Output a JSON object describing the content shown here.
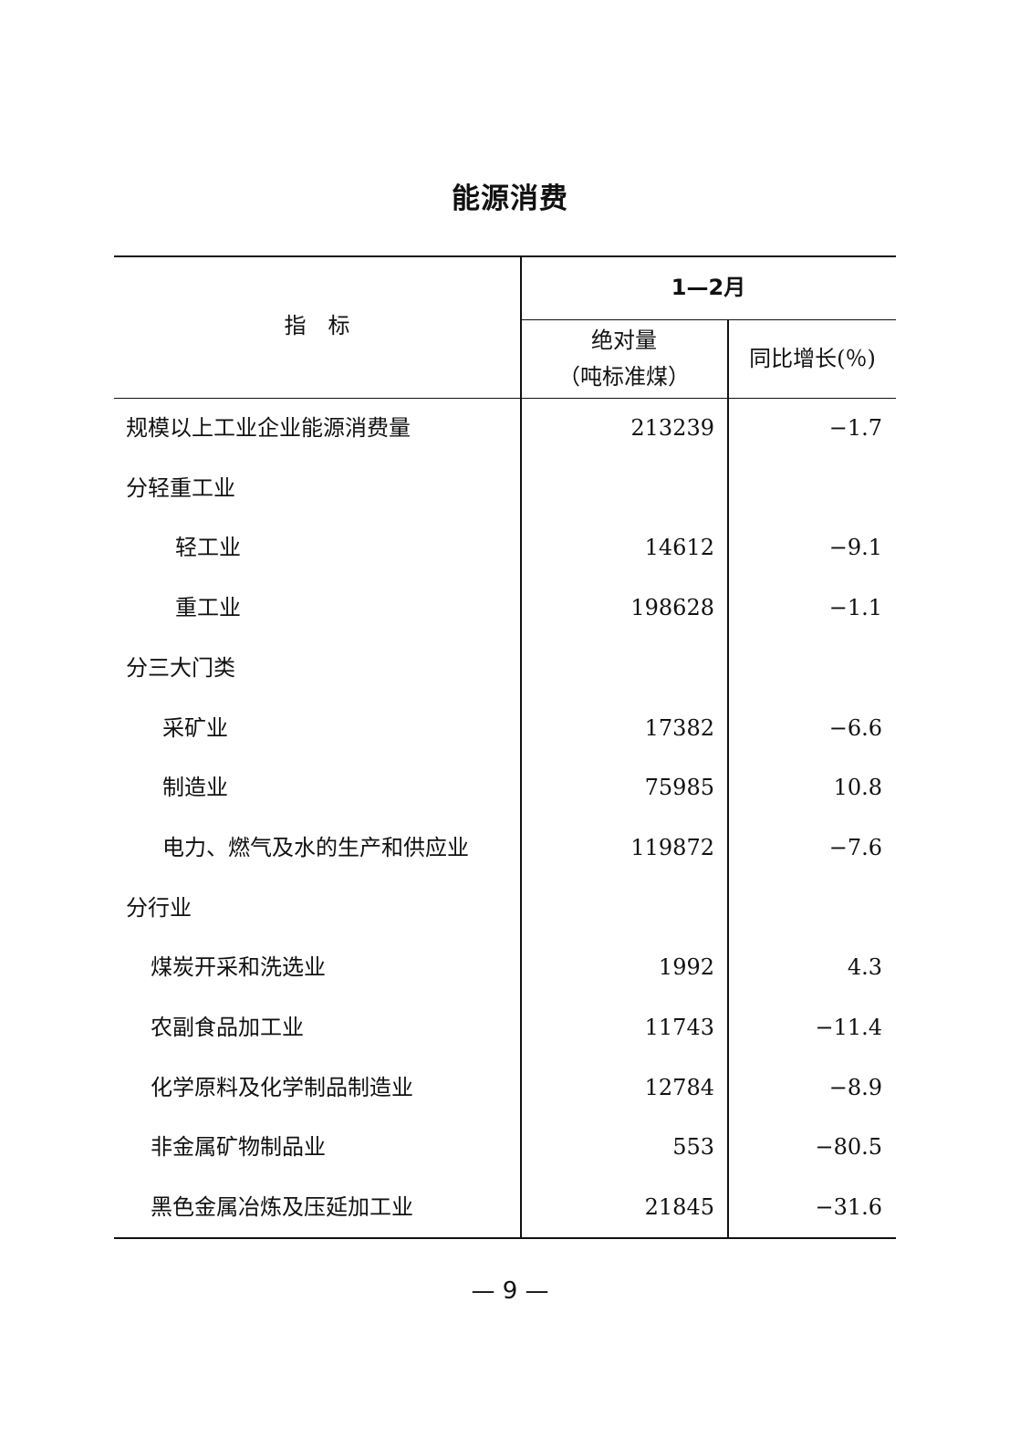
{
  "title": "能源消费",
  "table": {
    "header": {
      "indicator": "指　标",
      "period": "1—2月",
      "col_abs": "绝对量",
      "col_abs_unit": "（吨标准煤）",
      "col_growth": "同比增长(％)"
    },
    "rows": [
      {
        "label": "规模以上工业企业能源消费量",
        "level": 0,
        "value": "213239",
        "growth": "−1.7"
      },
      {
        "label": "分轻重工业",
        "level": 0,
        "value": "",
        "growth": ""
      },
      {
        "label": "轻工业",
        "level": 3,
        "value": "14612",
        "growth": "−9.1"
      },
      {
        "label": "重工业",
        "level": 3,
        "value": "198628",
        "growth": "−1.1"
      },
      {
        "label": "分三大门类",
        "level": 0,
        "value": "",
        "growth": ""
      },
      {
        "label": "采矿业",
        "level": 2,
        "value": "17382",
        "growth": "−6.6"
      },
      {
        "label": "制造业",
        "level": 2,
        "value": "75985",
        "growth": "10.8"
      },
      {
        "label": "电力、燃气及水的生产和供应业",
        "level": 2,
        "value": "119872",
        "growth": "−7.6"
      },
      {
        "label": "分行业",
        "level": 0,
        "value": "",
        "growth": ""
      },
      {
        "label": "煤炭开采和洗选业",
        "level": 1,
        "value": "1992",
        "growth": "4.3"
      },
      {
        "label": "农副食品加工业",
        "level": 1,
        "value": "11743",
        "growth": "−11.4"
      },
      {
        "label": "化学原料及化学制品制造业",
        "level": 1,
        "value": "12784",
        "growth": "−8.9"
      },
      {
        "label": "非金属矿物制品业",
        "level": 1,
        "value": "553",
        "growth": "−80.5"
      },
      {
        "label": "黑色金属冶炼及压延加工业",
        "level": 1,
        "value": "21845",
        "growth": "−31.6"
      }
    ]
  },
  "page_number": "— 9 —"
}
